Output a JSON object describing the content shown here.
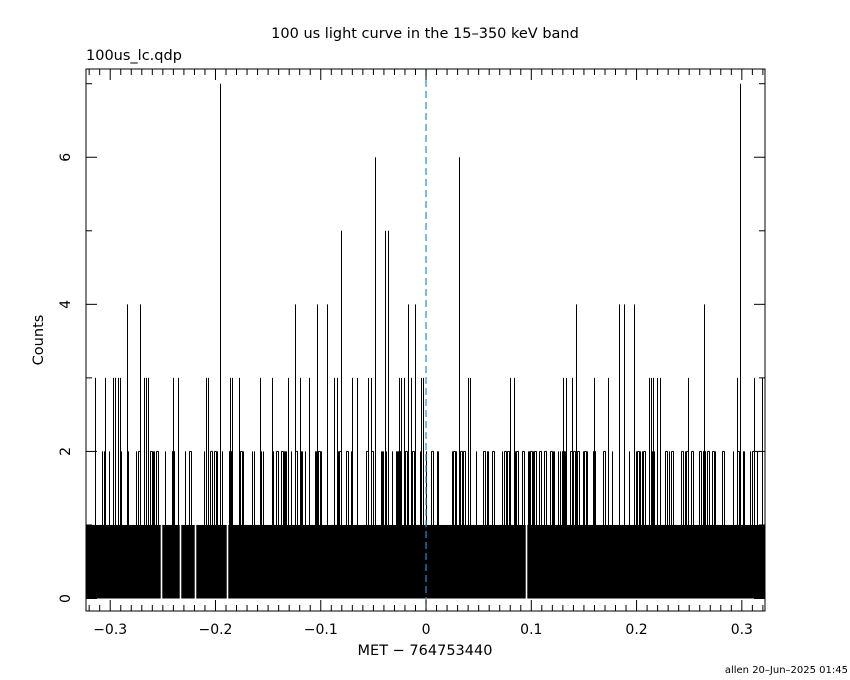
{
  "chart_data": {
    "type": "bar",
    "title": "100 us light curve in the 15–350 keV band",
    "file_label": "100us_lc.qdp",
    "xlabel": "MET − 764753440",
    "ylabel": "Counts",
    "footer": "allen 20–Jun–2025 01:45",
    "xlim": [
      -0.323,
      0.322
    ],
    "ylim": [
      -0.17,
      7.2
    ],
    "xticks": [
      -0.3,
      -0.2,
      -0.1,
      0,
      0.1,
      0.2,
      0.3
    ],
    "xtick_labels": [
      "−0.3",
      "−0.2",
      "−0.1",
      "0",
      "0.1",
      "0.2",
      "0.3"
    ],
    "yticks": [
      0,
      2,
      4,
      6
    ],
    "ytick_labels": [
      "0",
      "2",
      "4",
      "6"
    ],
    "bin_width": 0.0001,
    "baseline_level": 1,
    "trigger_line_x": 0,
    "trigger_line_color": "#1f8fd6",
    "gap_times": [
      -0.252,
      -0.234,
      -0.219,
      -0.189,
      0.095
    ],
    "peaks": [
      {
        "x": -0.196,
        "y": 7
      },
      {
        "x": 0.298,
        "y": 7
      },
      {
        "x": -0.048,
        "y": 6
      },
      {
        "x": 0.031,
        "y": 6
      },
      {
        "x": -0.081,
        "y": 5
      },
      {
        "x": -0.039,
        "y": 5
      },
      {
        "x": -0.036,
        "y": 5
      },
      {
        "x": -0.284,
        "y": 4
      },
      {
        "x": -0.272,
        "y": 4
      },
      {
        "x": -0.124,
        "y": 4
      },
      {
        "x": -0.104,
        "y": 4
      },
      {
        "x": -0.094,
        "y": 4
      },
      {
        "x": -0.017,
        "y": 4
      },
      {
        "x": -0.01,
        "y": 4
      },
      {
        "x": 0.142,
        "y": 4
      },
      {
        "x": 0.183,
        "y": 4
      },
      {
        "x": 0.188,
        "y": 4
      },
      {
        "x": 0.198,
        "y": 4
      },
      {
        "x": 0.264,
        "y": 4
      },
      {
        "x": -0.314,
        "y": 3
      },
      {
        "x": -0.305,
        "y": 3
      },
      {
        "x": -0.297,
        "y": 3
      },
      {
        "x": -0.295,
        "y": 3
      },
      {
        "x": -0.293,
        "y": 3
      },
      {
        "x": -0.291,
        "y": 3
      },
      {
        "x": -0.268,
        "y": 3
      },
      {
        "x": -0.266,
        "y": 3
      },
      {
        "x": -0.264,
        "y": 3
      },
      {
        "x": -0.24,
        "y": 3
      },
      {
        "x": -0.236,
        "y": 3
      },
      {
        "x": -0.209,
        "y": 3
      },
      {
        "x": -0.207,
        "y": 3
      },
      {
        "x": -0.186,
        "y": 3
      },
      {
        "x": -0.184,
        "y": 3
      },
      {
        "x": -0.178,
        "y": 3
      },
      {
        "x": -0.158,
        "y": 3
      },
      {
        "x": -0.146,
        "y": 3
      },
      {
        "x": -0.131,
        "y": 3
      },
      {
        "x": -0.12,
        "y": 3
      },
      {
        "x": -0.111,
        "y": 3
      },
      {
        "x": -0.087,
        "y": 3
      },
      {
        "x": -0.085,
        "y": 3
      },
      {
        "x": -0.07,
        "y": 3
      },
      {
        "x": -0.066,
        "y": 3
      },
      {
        "x": -0.055,
        "y": 3
      },
      {
        "x": -0.052,
        "y": 3
      },
      {
        "x": -0.026,
        "y": 3
      },
      {
        "x": -0.024,
        "y": 3
      },
      {
        "x": -0.021,
        "y": 3
      },
      {
        "x": -0.014,
        "y": 3
      },
      {
        "x": -0.005,
        "y": 3
      },
      {
        "x": -0.003,
        "y": 3
      },
      {
        "x": 0.04,
        "y": 3
      },
      {
        "x": 0.042,
        "y": 3
      },
      {
        "x": 0.08,
        "y": 3
      },
      {
        "x": 0.084,
        "y": 3
      },
      {
        "x": 0.13,
        "y": 3
      },
      {
        "x": 0.133,
        "y": 3
      },
      {
        "x": 0.139,
        "y": 3
      },
      {
        "x": 0.16,
        "y": 3
      },
      {
        "x": 0.173,
        "y": 3
      },
      {
        "x": 0.212,
        "y": 3
      },
      {
        "x": 0.214,
        "y": 3
      },
      {
        "x": 0.216,
        "y": 3
      },
      {
        "x": 0.219,
        "y": 3
      },
      {
        "x": 0.222,
        "y": 3
      },
      {
        "x": 0.249,
        "y": 3
      },
      {
        "x": 0.295,
        "y": 3
      },
      {
        "x": 0.312,
        "y": 3
      },
      {
        "x": 0.319,
        "y": 3
      }
    ]
  }
}
